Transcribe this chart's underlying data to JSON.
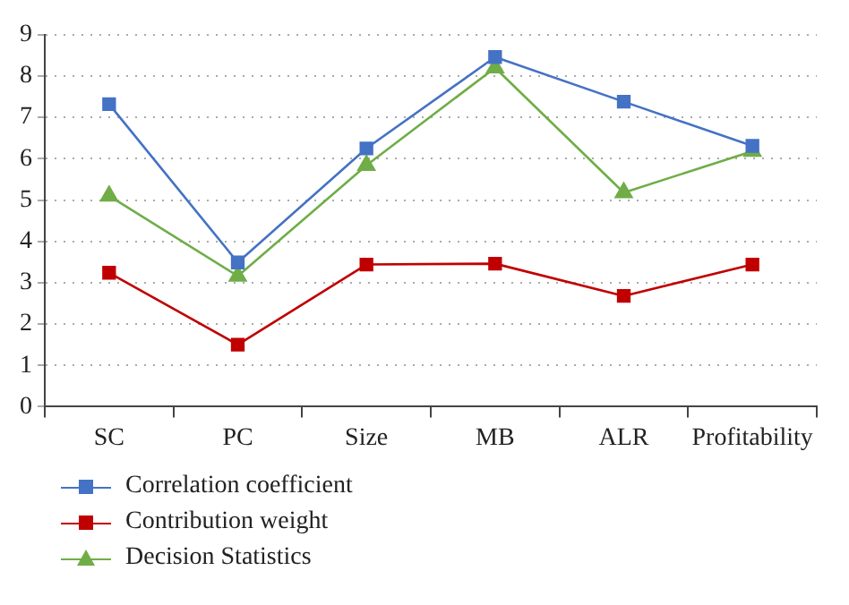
{
  "chart_data": {
    "type": "line",
    "categories": [
      "SC",
      "PC",
      "Size",
      "MB",
      "ALR",
      "Profitability"
    ],
    "series": [
      {
        "name": "Correlation coefficient",
        "color": "#4472c4",
        "marker": "square",
        "values": [
          7.32,
          3.49,
          6.25,
          8.46,
          7.38,
          6.31
        ]
      },
      {
        "name": "Contribution weight",
        "color": "#c00000",
        "marker": "square",
        "values": [
          3.24,
          1.5,
          3.44,
          3.46,
          2.68,
          3.44
        ]
      },
      {
        "name": "Decision Statistics",
        "color": "#70ad47",
        "marker": "triangle",
        "values": [
          5.1,
          3.16,
          5.84,
          8.2,
          5.18,
          6.18
        ]
      }
    ],
    "ylim": [
      0,
      9
    ],
    "yticks": [
      0,
      1,
      2,
      3,
      4,
      5,
      6,
      7,
      8,
      9
    ],
    "grid": "y",
    "legend": "bottom left",
    "line_style": "solid"
  }
}
